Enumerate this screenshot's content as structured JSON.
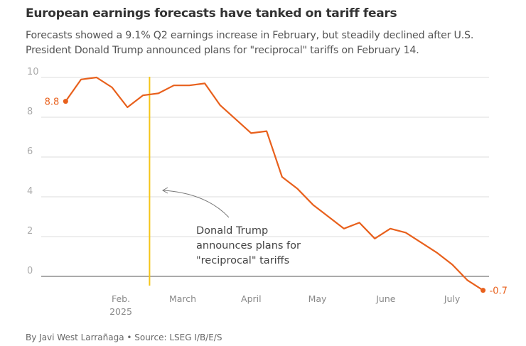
{
  "title": "European earnings forecasts have tanked on tariff fears",
  "subtitle": "Forecasts showed a 9.1% Q2 earnings increase in February, but steadily declined after U.S. President Donald Trump announced plans for \"reciprocal\" tariffs on February 14.",
  "footer": "By Javi West Larrañaga • Source: LSEG I/B/E/S",
  "chart_data": {
    "type": "line",
    "ylim": [
      -0.7,
      10
    ],
    "yticks": [
      0,
      2,
      4,
      6,
      8,
      10
    ],
    "grid": true,
    "xtick_labels": [
      {
        "date": "2025-02-01",
        "label": "Feb.",
        "label2": "2025"
      },
      {
        "date": "2025-03-01",
        "label": "March"
      },
      {
        "date": "2025-04-01",
        "label": "April"
      },
      {
        "date": "2025-05-01",
        "label": "May"
      },
      {
        "date": "2025-06-01",
        "label": "June"
      },
      {
        "date": "2025-07-01",
        "label": "July"
      }
    ],
    "x": [
      "2025-01-07",
      "2025-01-14",
      "2025-01-21",
      "2025-01-28",
      "2025-02-04",
      "2025-02-11",
      "2025-02-18",
      "2025-02-25",
      "2025-03-04",
      "2025-03-11",
      "2025-03-18",
      "2025-03-25",
      "2025-04-01",
      "2025-04-08",
      "2025-04-15",
      "2025-04-22",
      "2025-04-29",
      "2025-05-06",
      "2025-05-13",
      "2025-05-20",
      "2025-05-27",
      "2025-06-03",
      "2025-06-10",
      "2025-06-17",
      "2025-06-24",
      "2025-07-01",
      "2025-07-08",
      "2025-07-15"
    ],
    "values": [
      8.8,
      9.9,
      10.0,
      9.5,
      8.5,
      9.1,
      9.2,
      9.6,
      9.6,
      9.7,
      8.6,
      7.9,
      7.2,
      7.3,
      5.0,
      4.4,
      3.6,
      3.0,
      2.4,
      2.7,
      1.9,
      2.4,
      2.2,
      1.7,
      1.2,
      0.6,
      -0.2,
      -0.7
    ],
    "start_label": "8.8",
    "end_label": "-0.7",
    "event": {
      "date": "2025-02-14",
      "lines": [
        "Donald Trump",
        "announces plans for",
        "\"reciprocal\" tariffs"
      ]
    },
    "colors": {
      "line": "#e8601c",
      "event": "#f5c518",
      "grid": "#dddddd",
      "zero": "#555555"
    }
  }
}
